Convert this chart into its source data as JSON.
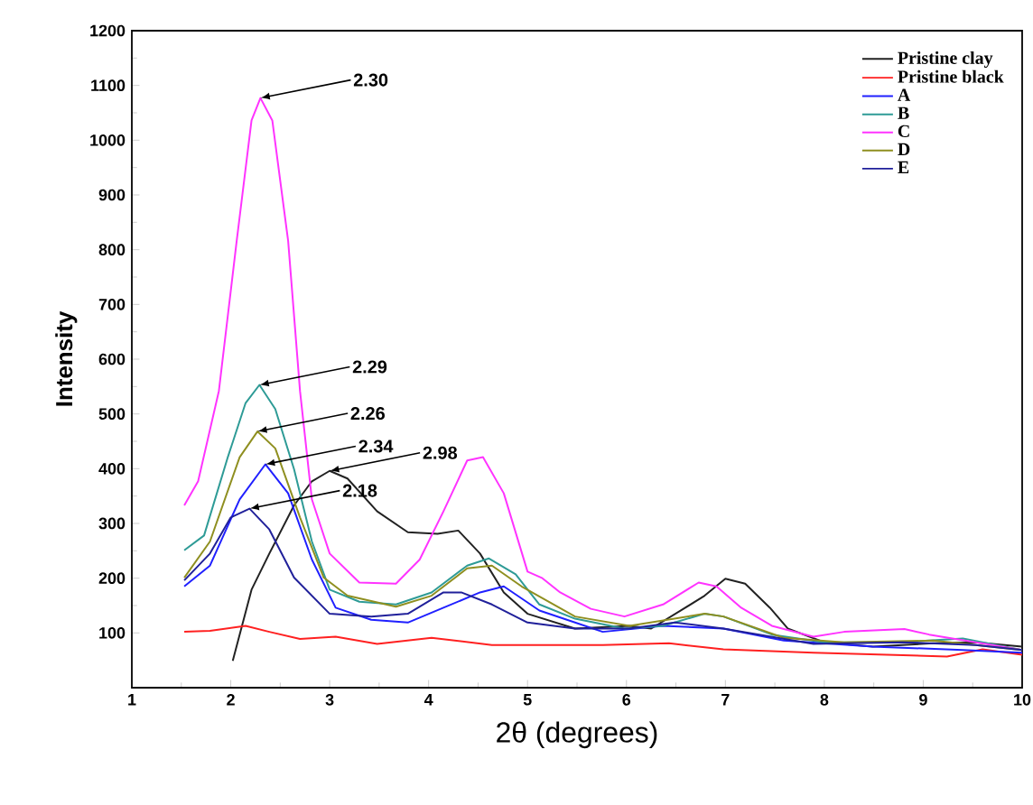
{
  "chart_data": {
    "type": "line",
    "xlabel": "2θ (degrees)",
    "ylabel": "Intensity",
    "xlim": [
      1,
      10
    ],
    "xticks": [
      1,
      2,
      3,
      4,
      5,
      6,
      7,
      8,
      9,
      10
    ],
    "ylim": [
      0,
      1200
    ],
    "yticks": [
      100,
      200,
      300,
      400,
      500,
      600,
      700,
      800,
      900,
      1000,
      1100,
      1200
    ],
    "legend": "top right",
    "grid": false,
    "marker": "none",
    "line_style": "solid",
    "series": [
      {
        "name": "Pristine clay",
        "color": "#222222",
        "x": [
          2.02,
          2.21,
          2.39,
          2.64,
          2.82,
          3.0,
          3.18,
          3.48,
          3.79,
          4.09,
          4.3,
          4.52,
          4.76,
          5.0,
          5.48,
          6.03,
          6.25,
          6.55,
          6.79,
          7.0,
          7.2,
          7.45,
          7.63,
          8.0,
          8.49,
          9.1,
          9.53,
          10
        ],
        "values": [
          49,
          179,
          245,
          333,
          377,
          396,
          382,
          322,
          284,
          281,
          287,
          245,
          174,
          135,
          108,
          113,
          108,
          141,
          168,
          199,
          190,
          146,
          108,
          83,
          75,
          81,
          83,
          75
        ]
      },
      {
        "name": "Pristine black",
        "color": "#ff2020",
        "x": [
          1.53,
          1.79,
          2.15,
          2.39,
          2.7,
          3.06,
          3.48,
          4.03,
          4.64,
          5.48,
          5.76,
          6.43,
          6.98,
          7.89,
          9.24,
          9.6,
          10
        ],
        "values": [
          102,
          104,
          113,
          102,
          89,
          93,
          80,
          91,
          78,
          78,
          78,
          81,
          70,
          64,
          57,
          70,
          60
        ]
      },
      {
        "name": "A",
        "color": "#2020ff",
        "x": [
          1.53,
          1.79,
          2.09,
          2.35,
          2.58,
          2.82,
          3.06,
          3.42,
          3.79,
          4.15,
          4.52,
          4.76,
          5.12,
          5.48,
          5.76,
          6.37,
          6.98,
          7.59,
          8.49,
          9.4,
          10
        ],
        "values": [
          185,
          223,
          344,
          408,
          355,
          234,
          146,
          124,
          119,
          146,
          174,
          185,
          141,
          119,
          102,
          113,
          108,
          86,
          75,
          69,
          64
        ]
      },
      {
        "name": "B",
        "color": "#2e9b96",
        "x": [
          1.53,
          1.73,
          1.97,
          2.15,
          2.29,
          2.45,
          2.64,
          2.82,
          3.0,
          3.3,
          3.67,
          4.03,
          4.39,
          4.61,
          4.88,
          5.12,
          5.48,
          5.98,
          6.37,
          6.79,
          6.98,
          7.47,
          8.0,
          8.79,
          9.4,
          10
        ],
        "values": [
          251,
          278,
          421,
          520,
          553,
          509,
          399,
          267,
          179,
          157,
          152,
          174,
          223,
          236,
          207,
          152,
          126,
          108,
          113,
          135,
          130,
          97,
          83,
          83,
          90,
          69
        ]
      },
      {
        "name": "C",
        "color": "#ff33ff",
        "x": [
          1.53,
          1.67,
          1.88,
          2.06,
          2.21,
          2.3,
          2.42,
          2.58,
          2.7,
          2.82,
          3.0,
          3.3,
          3.67,
          3.91,
          4.15,
          4.39,
          4.55,
          4.76,
          5.0,
          5.15,
          5.33,
          5.64,
          5.98,
          6.37,
          6.73,
          6.91,
          7.16,
          7.47,
          7.89,
          8.2,
          8.81,
          9.06,
          9.42,
          10
        ],
        "values": [
          333,
          377,
          542,
          816,
          1036,
          1077,
          1036,
          816,
          542,
          344,
          245,
          192,
          190,
          234,
          322,
          415,
          421,
          355,
          212,
          200,
          174,
          144,
          130,
          152,
          192,
          185,
          146,
          113,
          93,
          102,
          107,
          97,
          86,
          69
        ]
      },
      {
        "name": "D",
        "color": "#8f8f20",
        "x": [
          1.53,
          1.79,
          2.09,
          2.27,
          2.45,
          2.7,
          2.94,
          3.18,
          3.67,
          4.03,
          4.39,
          4.64,
          4.94,
          5.48,
          6.03,
          6.79,
          6.98,
          7.59,
          8.2,
          9.1,
          10
        ],
        "values": [
          201,
          267,
          421,
          468,
          437,
          311,
          201,
          168,
          148,
          168,
          218,
          223,
          185,
          130,
          113,
          135,
          130,
          91,
          83,
          86,
          69
        ]
      },
      {
        "name": "E",
        "color": "#20209a",
        "x": [
          1.53,
          1.79,
          2.0,
          2.19,
          2.39,
          2.64,
          3.0,
          3.42,
          3.79,
          4.15,
          4.33,
          4.64,
          5.0,
          5.48,
          6.03,
          6.49,
          6.98,
          7.89,
          8.79,
          9.53,
          10
        ],
        "values": [
          196,
          245,
          311,
          327,
          289,
          201,
          135,
          130,
          135,
          174,
          174,
          152,
          119,
          108,
          108,
          119,
          108,
          80,
          83,
          78,
          69
        ]
      }
    ],
    "annotations": [
      {
        "text": "2.30",
        "x": 2.3,
        "y": 1077
      },
      {
        "text": "2.29",
        "x": 2.29,
        "y": 553
      },
      {
        "text": "2.26",
        "x": 2.27,
        "y": 468
      },
      {
        "text": "2.34",
        "x": 2.35,
        "y": 408
      },
      {
        "text": "2.18",
        "x": 2.19,
        "y": 327
      },
      {
        "text": "2.98",
        "x": 3.0,
        "y": 396
      }
    ]
  }
}
